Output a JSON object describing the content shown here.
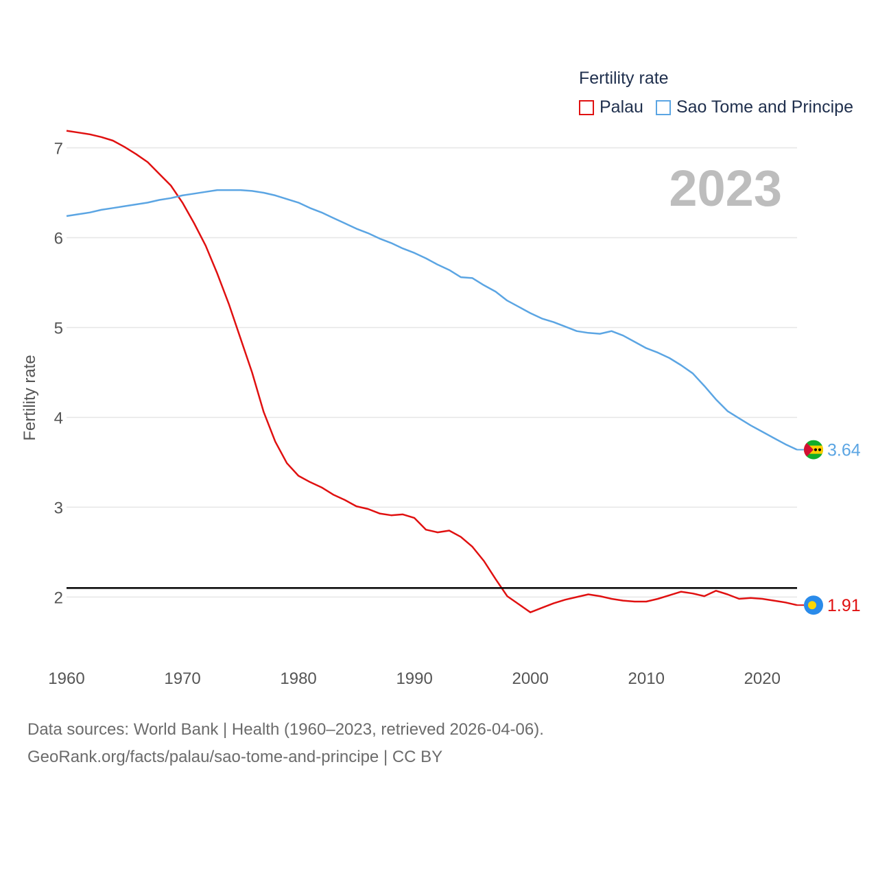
{
  "legend": {
    "title": "Fertility rate",
    "items": [
      {
        "label": "Palau",
        "color": "#e01010"
      },
      {
        "label": "Sao Tome and Principe",
        "color": "#5ba5e3"
      }
    ]
  },
  "source": {
    "line1": "Data sources: World Bank | Health (1960–2023, retrieved 2026-04-06).",
    "line2": "GeoRank.org/facts/palau/sao-tome-and-principe | CC BY"
  },
  "chart_data": {
    "type": "line",
    "title": "Fertility rate",
    "year_label": "2023",
    "ylabel": "Fertility rate",
    "xlabel": "",
    "xlim": [
      1960,
      2023
    ],
    "ylim": [
      1.4,
      7.5
    ],
    "xticks": [
      1960,
      1970,
      1980,
      1990,
      2000,
      2010,
      2020
    ],
    "yticks": [
      2,
      3,
      4,
      5,
      6,
      7
    ],
    "reference_line": {
      "value": 2.1,
      "color": "#000000"
    },
    "x": [
      1960,
      1961,
      1962,
      1963,
      1964,
      1965,
      1966,
      1967,
      1968,
      1969,
      1970,
      1971,
      1972,
      1973,
      1974,
      1975,
      1976,
      1977,
      1978,
      1979,
      1980,
      1981,
      1982,
      1983,
      1984,
      1985,
      1986,
      1987,
      1988,
      1989,
      1990,
      1991,
      1992,
      1993,
      1994,
      1995,
      1996,
      1997,
      1998,
      1999,
      2000,
      2001,
      2002,
      2003,
      2004,
      2005,
      2006,
      2007,
      2008,
      2009,
      2010,
      2011,
      2012,
      2013,
      2014,
      2015,
      2016,
      2017,
      2018,
      2019,
      2020,
      2021,
      2022,
      2023
    ],
    "series": [
      {
        "name": "Palau",
        "color": "#e01010",
        "end_label": "1.91",
        "values": [
          7.19,
          7.17,
          7.15,
          7.12,
          7.08,
          7.01,
          6.93,
          6.84,
          6.71,
          6.58,
          6.39,
          6.16,
          5.91,
          5.6,
          5.26,
          4.88,
          4.5,
          4.06,
          3.73,
          3.49,
          3.35,
          3.28,
          3.22,
          3.14,
          3.08,
          3.01,
          2.98,
          2.93,
          2.91,
          2.92,
          2.88,
          2.75,
          2.72,
          2.74,
          2.67,
          2.56,
          2.4,
          2.2,
          2.01,
          1.92,
          1.83,
          1.88,
          1.93,
          1.97,
          2.0,
          2.03,
          2.01,
          1.98,
          1.96,
          1.95,
          1.95,
          1.98,
          2.02,
          2.06,
          2.04,
          2.01,
          2.07,
          2.03,
          1.98,
          1.99,
          1.98,
          1.96,
          1.94,
          1.91
        ]
      },
      {
        "name": "Sao Tome and Principe",
        "color": "#5ba5e3",
        "end_label": "3.64",
        "values": [
          6.24,
          6.26,
          6.28,
          6.31,
          6.33,
          6.35,
          6.37,
          6.39,
          6.42,
          6.44,
          6.47,
          6.49,
          6.51,
          6.53,
          6.53,
          6.53,
          6.52,
          6.5,
          6.47,
          6.43,
          6.39,
          6.33,
          6.28,
          6.22,
          6.16,
          6.1,
          6.05,
          5.99,
          5.94,
          5.88,
          5.83,
          5.77,
          5.7,
          5.64,
          5.56,
          5.55,
          5.47,
          5.4,
          5.3,
          5.23,
          5.16,
          5.1,
          5.06,
          5.01,
          4.96,
          4.94,
          4.93,
          4.96,
          4.91,
          4.84,
          4.77,
          4.72,
          4.66,
          4.58,
          4.49,
          4.35,
          4.2,
          4.07,
          3.99,
          3.91,
          3.84,
          3.77,
          3.7,
          3.64
        ]
      }
    ]
  }
}
